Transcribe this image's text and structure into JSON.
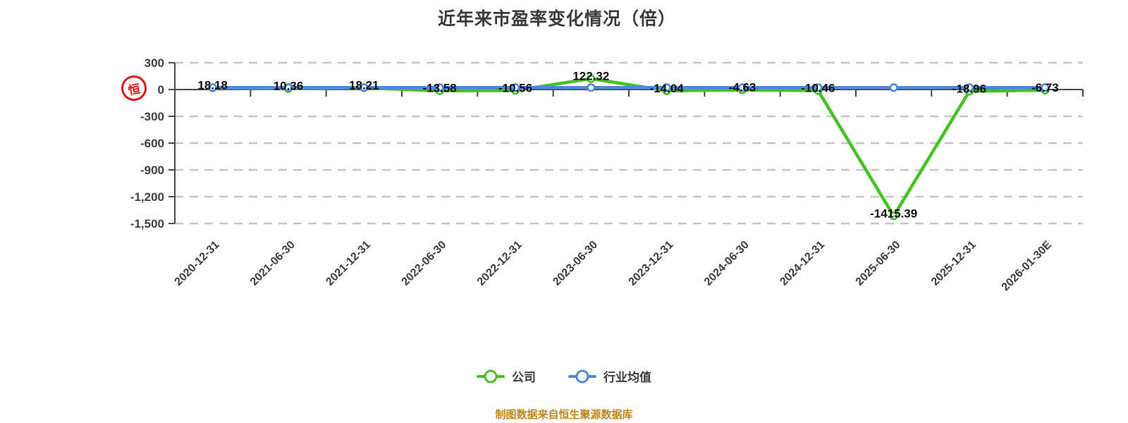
{
  "page": {
    "background": "#ffffff"
  },
  "chart_data": {
    "type": "line",
    "title": "近年来市盈率变化情况（倍）",
    "categories": [
      "2020-12-31",
      "2021-06-30",
      "2021-12-31",
      "2022-06-30",
      "2022-12-31",
      "2023-06-30",
      "2023-12-31",
      "2024-06-30",
      "2024-12-31",
      "2025-06-30",
      "2025-12-31",
      "2026-01-30E"
    ],
    "series": [
      {
        "name": "公司",
        "color": "#44c220",
        "values": [
          18.18,
          10.36,
          18.21,
          -13.58,
          -10.56,
          122.32,
          -14.04,
          -4.63,
          -10.46,
          -1415.39,
          -18.96,
          -6.73
        ],
        "labels": [
          "18.18",
          "10.36",
          "18.21",
          "-13.58",
          "-10.56",
          "122.32",
          "-14.04",
          "-4.63",
          "-10.46",
          "-1415.39",
          "-18.96",
          "-6.73"
        ]
      },
      {
        "name": "行业均值",
        "color": "#4c87e2",
        "values": [
          22,
          22,
          22,
          22,
          22,
          22,
          22,
          22,
          22,
          22,
          22,
          22
        ],
        "estimated": true
      }
    ],
    "ylim": [
      -1500,
      300
    ],
    "y_ticks": [
      {
        "label": "300",
        "value": 300
      },
      {
        "label": "0",
        "value": 0
      },
      {
        "label": "-300",
        "value": -300
      },
      {
        "label": "-600",
        "value": -600
      },
      {
        "label": "-900",
        "value": -900
      },
      {
        "label": "-1,200",
        "value": -1200
      },
      {
        "label": "-1,500",
        "value": -1500
      }
    ],
    "grid": "horizontal dashed",
    "legend_position": "bottom",
    "x_label_rotation": 45,
    "xlabel": "",
    "ylabel": ""
  },
  "seal": {
    "char": "恒",
    "color": "#e60000"
  },
  "footer": {
    "source_note": "制图数据来自恒生聚源数据库",
    "color": "#c0861a"
  }
}
